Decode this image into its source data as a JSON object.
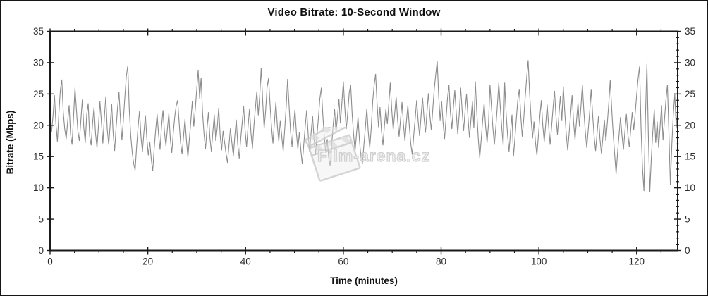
{
  "chart_data": {
    "type": "line",
    "title": "Video Bitrate: 10-Second Window",
    "xlabel": "Time (minutes)",
    "ylabel": "Bitrate (Mbps)",
    "xlim": [
      0,
      128.4
    ],
    "ylim": [
      0,
      35
    ],
    "x_major_ticks": [
      0,
      20,
      40,
      60,
      80,
      100,
      120
    ],
    "x_minor_step": 5,
    "y_major_ticks": [
      0,
      5,
      10,
      15,
      20,
      25,
      30,
      35
    ],
    "y_minor_step": 1,
    "grid": false,
    "legend": "none",
    "window_seconds": 10,
    "x_step_minutes": 0.3,
    "series": [
      {
        "name": "video-bitrate",
        "color": "#8c8c8c",
        "values": [
          19.8,
          18.9,
          21.5,
          24.8,
          20.2,
          17.4,
          21.9,
          25.6,
          27.3,
          22.1,
          19.4,
          17.8,
          20.6,
          23.2,
          18.5,
          16.9,
          21.3,
          26.0,
          22.4,
          19.0,
          17.5,
          20.8,
          24.1,
          19.6,
          17.2,
          21.7,
          23.5,
          18.3,
          16.8,
          20.4,
          22.9,
          18.7,
          16.4,
          19.9,
          23.8,
          20.6,
          17.1,
          21.2,
          24.6,
          19.3,
          16.9,
          20.1,
          23.4,
          18.8,
          15.9,
          19.5,
          22.7,
          25.3,
          21.0,
          17.6,
          20.9,
          24.5,
          27.8,
          29.5,
          22.6,
          18.4,
          15.7,
          13.9,
          12.8,
          16.5,
          19.7,
          22.3,
          18.1,
          15.8,
          18.9,
          21.6,
          17.9,
          15.2,
          17.4,
          14.6,
          12.7,
          16.3,
          19.2,
          21.8,
          18.5,
          16.1,
          19.8,
          22.4,
          18.9,
          16.7,
          19.4,
          21.9,
          17.8,
          15.6,
          18.7,
          21.3,
          23.1,
          24.0,
          20.5,
          17.2,
          15.4,
          18.2,
          21.0,
          17.6,
          14.9,
          17.8,
          20.7,
          23.9,
          19.8,
          22.5,
          25.7,
          28.8,
          24.3,
          27.6,
          21.9,
          18.6,
          16.2,
          19.4,
          22.1,
          18.0,
          15.8,
          18.9,
          21.7,
          17.5,
          19.6,
          22.8,
          18.4,
          16.0,
          19.1,
          17.3,
          15.5,
          14.0,
          16.8,
          19.5,
          17.2,
          15.1,
          18.3,
          20.9,
          16.9,
          14.7,
          17.8,
          20.4,
          23.0,
          19.2,
          16.5,
          19.7,
          22.6,
          18.8,
          16.3,
          19.9,
          22.7,
          25.4,
          21.6,
          24.9,
          29.2,
          23.8,
          19.5,
          22.3,
          26.1,
          27.5,
          23.4,
          19.8,
          17.1,
          20.5,
          23.7,
          19.9,
          17.4,
          20.8,
          18.2,
          15.9,
          19.3,
          22.9,
          27.4,
          23.1,
          19.0,
          16.6,
          19.8,
          22.5,
          18.7,
          16.2,
          18.9,
          16.1,
          13.8,
          16.9,
          19.8,
          22.4,
          18.6,
          15.7,
          18.8,
          21.5,
          17.9,
          15.3,
          18.4,
          21.2,
          24.3,
          26.0,
          21.7,
          18.1,
          15.6,
          17.8,
          14.8,
          13.5,
          16.7,
          19.9,
          22.6,
          18.9,
          21.4,
          24.2,
          20.3,
          23.6,
          27.0,
          22.8,
          19.4,
          22.0,
          25.2,
          26.5,
          21.8,
          18.5,
          15.9,
          18.7,
          21.3,
          17.6,
          14.9,
          13.9,
          16.8,
          19.6,
          22.7,
          18.9,
          16.4,
          19.5,
          23.8,
          26.4,
          28.2,
          23.5,
          19.7,
          22.9,
          19.1,
          16.8,
          19.9,
          22.6,
          20.2,
          23.4,
          26.8,
          22.5,
          19.3,
          21.8,
          24.6,
          20.9,
          18.2,
          21.0,
          23.7,
          20.1,
          17.5,
          20.6,
          23.2,
          19.8,
          17.0,
          15.3,
          18.4,
          21.1,
          24.0,
          20.7,
          18.3,
          21.5,
          24.4,
          21.2,
          18.8,
          22.0,
          25.1,
          21.6,
          19.2,
          22.6,
          25.8,
          28.1,
          30.3,
          24.7,
          20.8,
          23.9,
          20.4,
          17.8,
          21.0,
          24.3,
          26.5,
          22.1,
          19.4,
          22.8,
          25.6,
          21.9,
          18.6,
          21.7,
          26.0,
          22.4,
          19.1,
          22.2,
          25.0,
          21.3,
          18.0,
          20.9,
          23.8,
          19.6,
          27.0,
          22.0,
          17.9,
          14.8,
          17.7,
          20.8,
          23.5,
          19.9,
          17.2,
          20.3,
          26.5,
          22.9,
          19.5,
          16.9,
          19.8,
          23.1,
          26.8,
          23.0,
          19.7,
          16.8,
          26.8,
          21.9,
          18.4,
          15.8,
          18.9,
          21.7,
          15.0,
          17.9,
          21.2,
          24.1,
          25.8,
          21.5,
          18.2,
          21.0,
          24.5,
          27.6,
          30.4,
          25.2,
          21.1,
          17.9,
          20.6,
          17.3,
          15.2,
          18.3,
          21.4,
          24.0,
          20.0,
          17.4,
          20.2,
          23.3,
          19.9,
          16.9,
          19.7,
          22.8,
          25.5,
          21.4,
          18.5,
          21.6,
          24.7,
          20.8,
          26.2,
          22.1,
          18.6,
          16.0,
          18.8,
          21.9,
          24.8,
          20.5,
          17.7,
          20.7,
          23.6,
          19.8,
          22.9,
          26.5,
          22.3,
          18.9,
          16.4,
          19.3,
          22.2,
          25.8,
          21.7,
          18.3,
          15.9,
          18.6,
          21.5,
          17.8,
          15.5,
          18.1,
          20.9,
          17.5,
          20.3,
          23.5,
          27.2,
          22.6,
          18.7,
          15.4,
          12.2,
          15.6,
          18.5,
          21.3,
          18.4,
          16.1,
          19.0,
          21.8,
          18.6,
          16.5,
          19.4,
          22.1,
          19.2,
          21.9,
          24.8,
          27.5,
          29.4,
          19.6,
          13.2,
          9.5,
          21.4,
          29.8,
          18.3,
          9.4,
          14.7,
          18.9,
          22.5,
          17.2,
          20.6,
          16.4,
          19.8,
          23.2,
          17.6,
          21.0,
          24.1,
          26.5,
          18.8,
          10.5,
          16.9,
          21.7,
          25.0,
          19.5,
          23.0
        ]
      }
    ]
  },
  "watermark": {
    "text": "Film-arena.cz",
    "color": "#e8e8e8",
    "outline_color": "#c3c3c3"
  },
  "colors": {
    "background": "#ffffff",
    "axis": "#1a1a1a",
    "tick_label": "#2a2a2a",
    "line": "#8c8c8c"
  }
}
